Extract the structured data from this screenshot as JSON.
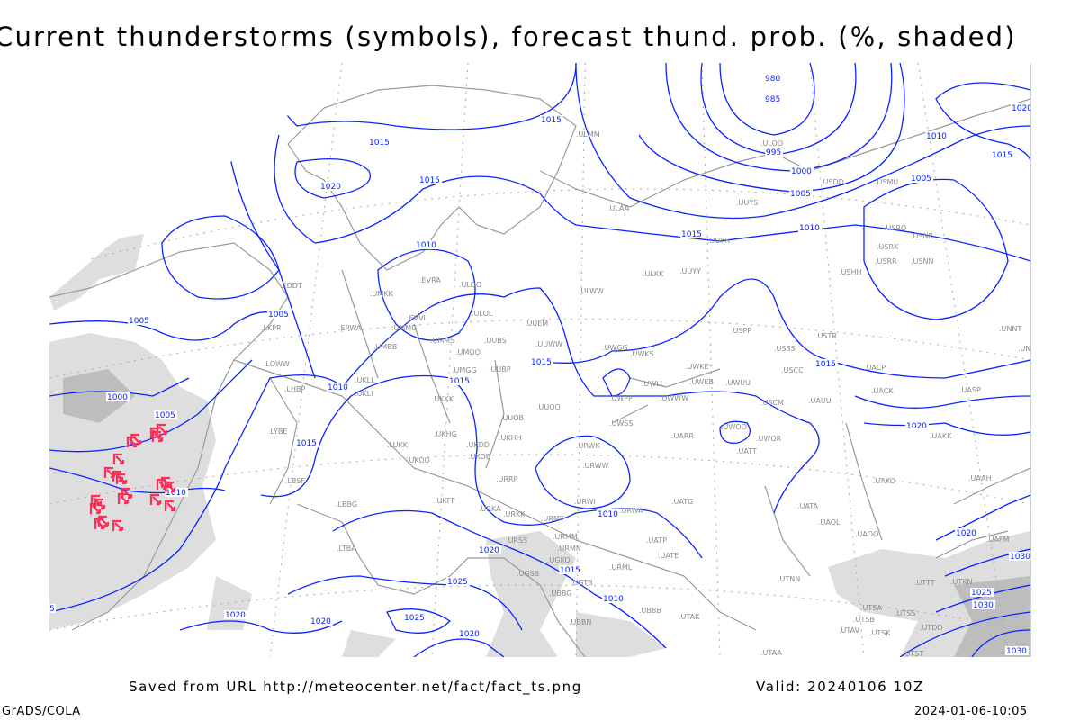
{
  "title": "Current thunderstorms (symbols), forecast thund. prob. (%, shaded)",
  "footer": {
    "source": "Saved from URL http://meteocenter.net/fact/fact_ts.png",
    "valid": "Valid: 20240106 10Z",
    "software": "GrADS/COLA",
    "timestamp": "2024-01-06-10:05"
  },
  "colors": {
    "isobar": "#0a24ff",
    "coastline": "#9a9a9a",
    "station_label": "#8a8a8a",
    "thunderstorm_symbol": "#ff2d5a",
    "probability_shading": "#d9d9d9"
  },
  "isobar_labels": [
    "980",
    "985",
    "995",
    "1000",
    "1005",
    "1015",
    "1015",
    "1020",
    "1015",
    "1010",
    "1015",
    "1010",
    "1005",
    "1020",
    "1010",
    "1015",
    "1005",
    "1005",
    "1000",
    "1005",
    "1010",
    "1015",
    "1015",
    "1015",
    "1015",
    "1010",
    "1010",
    "1020",
    "1015",
    "1010",
    "1025",
    "1025",
    "1020",
    "1020",
    "1020",
    "1020",
    "1020",
    "1030",
    "1025",
    "1030",
    "1030",
    "5"
  ],
  "stations": [
    "ULMM",
    "ULOO",
    "USDD",
    "USMU",
    "UUYS",
    "ULAA",
    "UUYH",
    "ULKK",
    "UUYY",
    "ULWW",
    "USRO",
    "USRK",
    "USNR",
    "USRR",
    "USNN",
    "USHH",
    "ULOO",
    "EVRA",
    "UMKK",
    "EDDT",
    "LKPR",
    "EPWA",
    "UMMG",
    "EVVI",
    "ULOL",
    "UMMS",
    "UMOO",
    "UUBS",
    "UMBB",
    "UUEM",
    "UUWW",
    "UWGG",
    "UWKS",
    "USPP",
    "USSS",
    "USTR",
    "UNNT",
    "UNBB",
    "UACP",
    "LOWW",
    "LHBP",
    "UKLL",
    "UKLI",
    "UMGG",
    "UUBP",
    "UKKK",
    "UUOB",
    "UUOO",
    "UWKE",
    "UWKB",
    "UWUU",
    "UWLL",
    "UWPP",
    "UWWW",
    "USCC",
    "USCM",
    "UAUU",
    "UACK",
    "UASP",
    "LYBE",
    "LUKK",
    "UKHH",
    "UKDD",
    "UKHG",
    "UKDE",
    "UKOO",
    "UWSS",
    "URWK",
    "UARR",
    "UATT",
    "UWOO",
    "UWOR",
    "UAKK",
    "LBSF",
    "URRP",
    "URWW",
    "URWI",
    "UATG",
    "UAKO",
    "UAAH",
    "LBBG",
    "UKFF",
    "URKA",
    "URKK",
    "URMT",
    "URWA",
    "UATA",
    "UAOL",
    "UAOO",
    "UAFM",
    "LTBA",
    "URSS",
    "URMM",
    "URMN",
    "UATP",
    "UATE",
    "UGSB",
    "UGKO",
    "UGTB",
    "UBBG",
    "URML",
    "UTNN",
    "UTTT",
    "UTKN",
    "UTSA",
    "UTSB",
    "UTSS",
    "UTAV",
    "UTSK",
    "UTDD",
    "UTST",
    "UTAA",
    "UTAK",
    "UBBB",
    "UBBN"
  ]
}
